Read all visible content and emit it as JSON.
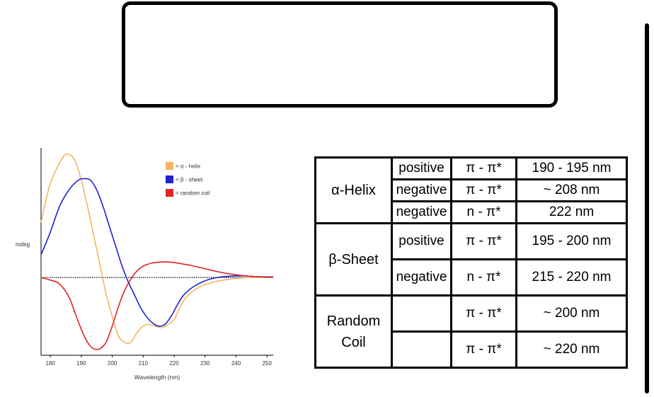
{
  "chart_data": {
    "type": "line",
    "xlabel": "Wavelength (nm)",
    "ylabel": "mdeg",
    "xlim": [
      177,
      252
    ],
    "ylim": [
      -24,
      40
    ],
    "x_ticks": [
      180,
      190,
      200,
      210,
      220,
      230,
      240,
      250
    ],
    "zero_line": "dotted",
    "legend_position": "top-right",
    "series": [
      {
        "name": "= α - helix",
        "color": "#f5b461",
        "x": [
          177,
          180,
          184,
          186,
          188,
          190,
          192,
          194,
          196,
          198,
          200,
          202,
          204,
          206,
          208,
          210,
          212,
          214,
          216,
          218,
          220,
          222,
          224,
          228,
          232,
          236,
          240,
          244,
          248,
          252
        ],
        "y": [
          17,
          29,
          37,
          38,
          36,
          30,
          22,
          13,
          4,
          -5,
          -12,
          -18,
          -20,
          -20,
          -17,
          -15,
          -14.5,
          -15,
          -15.5,
          -14.5,
          -13,
          -9,
          -6,
          -3,
          -1.6,
          -0.8,
          -0.3,
          0,
          0,
          0
        ]
      },
      {
        "name": "= β - sheet",
        "color": "#1e22d6",
        "x": [
          177,
          180,
          183,
          186,
          189,
          191,
          193,
          195,
          197,
          199,
          201,
          203,
          205,
          207,
          209,
          211,
          213,
          215,
          217,
          219,
          221,
          223,
          226,
          230,
          234,
          238,
          242,
          246,
          250,
          252
        ],
        "y": [
          7,
          14,
          22,
          27,
          30,
          30.5,
          30,
          27,
          22,
          16,
          10,
          4,
          -1,
          -5,
          -9,
          -12,
          -14,
          -15,
          -14.5,
          -12,
          -8.5,
          -5.5,
          -3,
          -1,
          0,
          0.4,
          0.5,
          0.3,
          0.2,
          0.2
        ]
      },
      {
        "name": "= random coil",
        "color": "#e22224",
        "x": [
          177,
          180,
          183,
          186,
          188,
          190,
          192,
          194,
          196,
          198,
          200,
          202,
          204,
          206,
          208,
          210,
          213,
          216,
          219,
          222,
          226,
          230,
          234,
          238,
          242,
          246,
          250,
          252
        ],
        "y": [
          0,
          -0.8,
          -2,
          -6,
          -11,
          -16,
          -20,
          -22,
          -22,
          -20,
          -15,
          -9,
          -4,
          -0.5,
          2,
          3.5,
          4.5,
          4.8,
          4.7,
          4.3,
          3.6,
          2.7,
          1.8,
          1.1,
          0.6,
          0.3,
          0.1,
          0.1
        ]
      }
    ]
  },
  "table": {
    "rows": [
      {
        "sign": "positive",
        "transition": "π - π*",
        "wavelength": "190 - 195 nm"
      },
      {
        "sign": "negative",
        "transition": "π - π*",
        "wavelength": "~ 208 nm"
      },
      {
        "sign": "negative",
        "transition": "n - π*",
        "wavelength": "222 nm"
      },
      {
        "sign": "positive",
        "transition": "π - π*",
        "wavelength": "195 - 200 nm"
      },
      {
        "sign": "negative",
        "transition": "n - π*",
        "wavelength": "215 - 220 nm"
      },
      {
        "sign": "",
        "transition": "π - π*",
        "wavelength": "~ 200 nm"
      },
      {
        "sign": "",
        "transition": "π - π*",
        "wavelength": "~ 220 nm"
      }
    ],
    "structures": {
      "alpha_helix": "α-Helix",
      "beta_sheet": "β-Sheet",
      "random_line1": "Random",
      "random_line2": "Coil"
    }
  }
}
